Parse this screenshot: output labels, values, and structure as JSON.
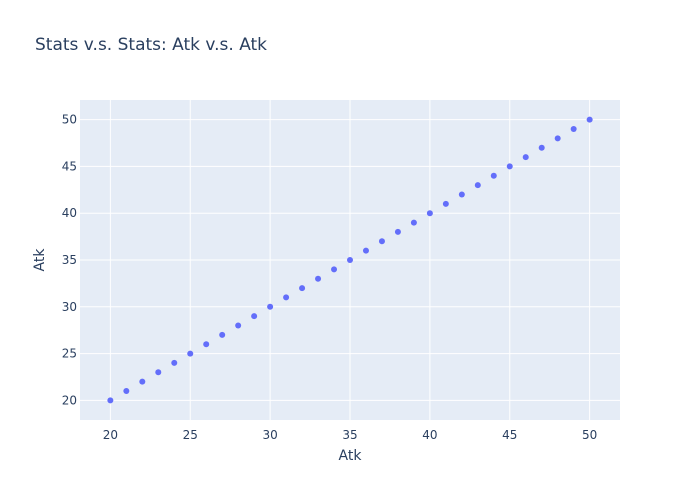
{
  "chart_data": {
    "type": "scatter",
    "title": "Stats v.s. Stats: Atk v.s. Atk",
    "xlabel": "Atk",
    "ylabel": "Atk",
    "xlim": [
      18.1,
      51.9
    ],
    "ylim": [
      17.9,
      52.1
    ],
    "xticks": [
      20,
      25,
      30,
      35,
      40,
      45,
      50
    ],
    "yticks": [
      20,
      25,
      30,
      35,
      40,
      45,
      50
    ],
    "grid": true,
    "marker_color": "#636efa",
    "plot_background": "#e5ecf6",
    "grid_color": "#ffffff",
    "x": [
      20,
      21,
      22,
      23,
      24,
      25,
      26,
      27,
      28,
      29,
      30,
      31,
      32,
      33,
      34,
      35,
      36,
      37,
      38,
      39,
      40,
      41,
      42,
      43,
      44,
      45,
      46,
      47,
      48,
      49,
      50
    ],
    "y": [
      20,
      21,
      22,
      23,
      24,
      25,
      26,
      27,
      28,
      29,
      30,
      31,
      32,
      33,
      34,
      35,
      36,
      37,
      38,
      39,
      40,
      41,
      42,
      43,
      44,
      45,
      46,
      47,
      48,
      49,
      50
    ]
  }
}
